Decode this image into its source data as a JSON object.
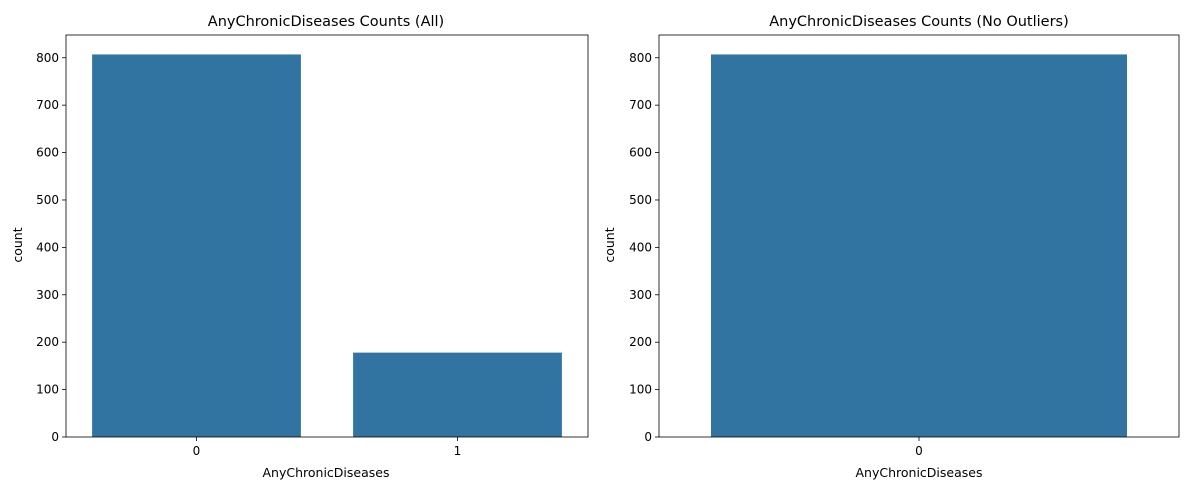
{
  "chart_data": [
    {
      "type": "bar",
      "title": "AnyChronicDiseases Counts (All)",
      "xlabel": "AnyChronicDiseases",
      "ylabel": "count",
      "categories": [
        "0",
        "1"
      ],
      "values": [
        807,
        178
      ],
      "ylim": [
        0,
        848
      ],
      "yticks": [
        "0",
        "100",
        "200",
        "300",
        "400",
        "500",
        "600",
        "700",
        "800"
      ],
      "bar_color": "#3274a1",
      "grid": false
    },
    {
      "type": "bar",
      "title": "AnyChronicDiseases Counts (No Outliers)",
      "xlabel": "AnyChronicDiseases",
      "ylabel": "count",
      "categories": [
        "0"
      ],
      "values": [
        807
      ],
      "ylim": [
        0,
        848
      ],
      "yticks": [
        "0",
        "100",
        "200",
        "300",
        "400",
        "500",
        "600",
        "700",
        "800"
      ],
      "bar_color": "#3274a1",
      "grid": false
    }
  ]
}
